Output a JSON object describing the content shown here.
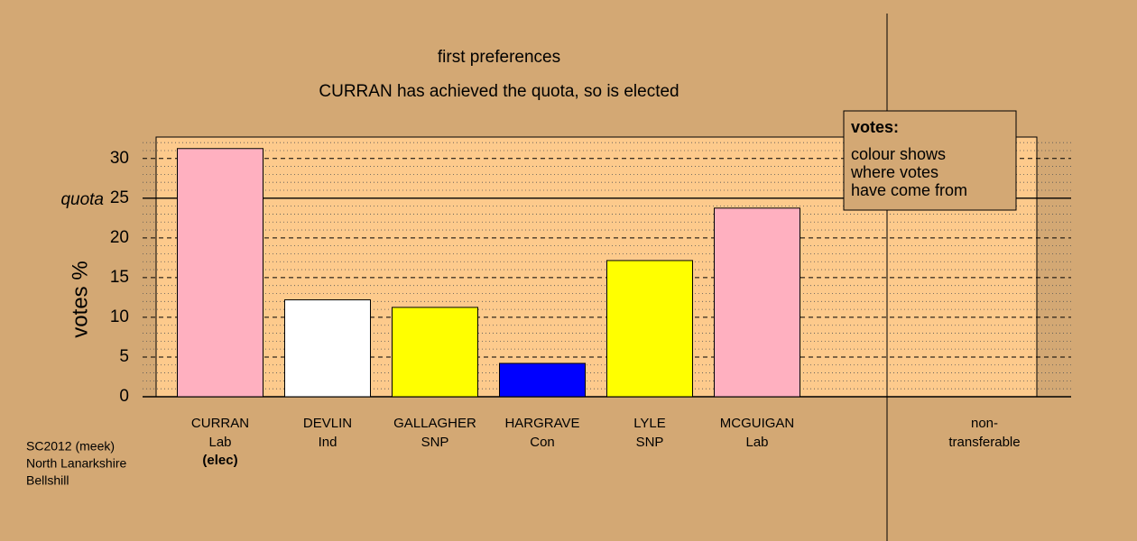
{
  "chart_data": {
    "type": "bar",
    "title": "first preferences",
    "subtitle": "CURRAN has achieved the quota, so is elected",
    "y_label": "votes %",
    "categories": [
      "CURRAN",
      "DEVLIN",
      "GALLAGHER",
      "HARGRAVE",
      "LYLE",
      "MCGUIGAN",
      "non-"
    ],
    "parties": [
      "Lab",
      "Ind",
      "SNP",
      "Con",
      "SNP",
      "Lab",
      "transferable"
    ],
    "status": [
      "(elec)",
      null,
      null,
      null,
      null,
      null,
      null
    ],
    "values": [
      31.25,
      12.2,
      11.25,
      4.2,
      17.15,
      23.75,
      0
    ],
    "colors": [
      "#ffb0c0",
      "#ffffff",
      "#ffff00",
      "#0000ff",
      "#ffff00",
      "#ffb0c0",
      "#ffffff"
    ],
    "ylim": [
      0,
      32.7
    ],
    "yticks": [
      0,
      5,
      10,
      15,
      20,
      25,
      30
    ],
    "minor_yticks": [
      1,
      2,
      3,
      4,
      6,
      7,
      8,
      9,
      11,
      12,
      13,
      14,
      16,
      17,
      18,
      19,
      21,
      22,
      23,
      24,
      26,
      27,
      28,
      29,
      31,
      32
    ],
    "quota": 25,
    "quota_label": "quota",
    "grid": true,
    "legend": {
      "title": "votes:",
      "lines": [
        "colour shows",
        "where votes",
        "have come from"
      ]
    },
    "footer": [
      "SC2012 (meek)",
      "North Lanarkshire",
      "Bellshill"
    ]
  }
}
